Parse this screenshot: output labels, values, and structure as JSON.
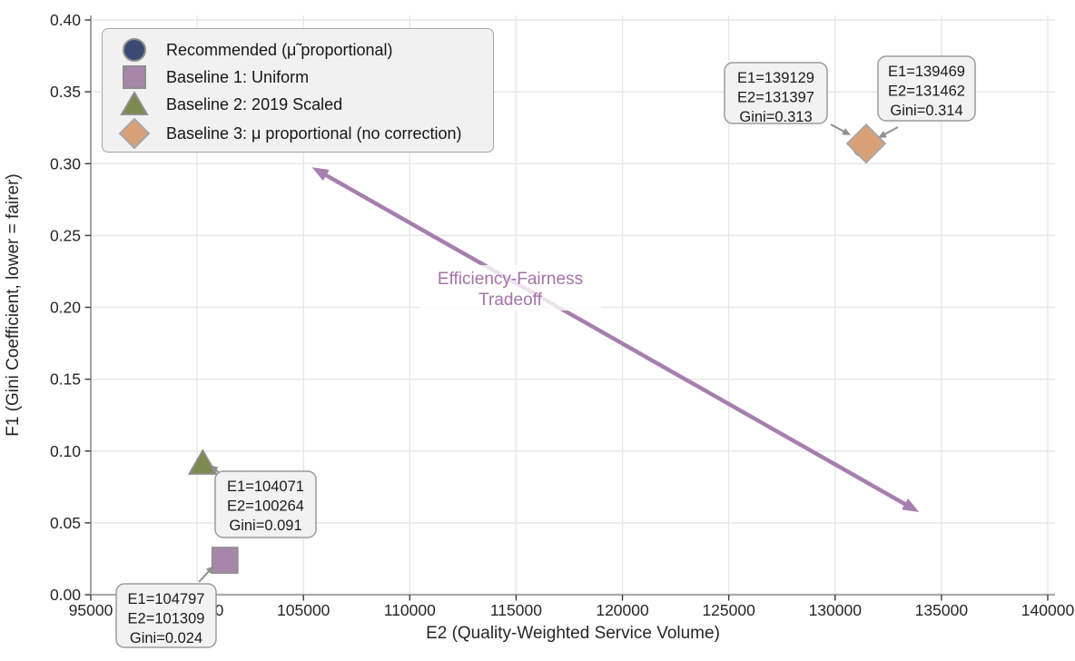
{
  "chart_data": {
    "type": "scatter",
    "title": "",
    "xlabel": "E2 (Quality-Weighted Service Volume)",
    "ylabel": "F1 (Gini Coefficient, lower = fairer)",
    "xlim": [
      95000,
      140000
    ],
    "ylim": [
      0.0,
      0.4
    ],
    "grid": true,
    "legend_position": "upper left",
    "x_tick_labels": [
      "95000",
      "100000",
      "105000",
      "110000",
      "115000",
      "120000",
      "125000",
      "130000",
      "135000",
      "140000"
    ],
    "y_tick_labels": [
      "0.00",
      "0.05",
      "0.10",
      "0.15",
      "0.20",
      "0.25",
      "0.30",
      "0.35",
      "0.40"
    ],
    "series": [
      {
        "name": "Recommended (μ̃ proportional)",
        "marker": "circle",
        "color": "#3a4a74",
        "edge_color": "#8f8f8f",
        "points": [
          {
            "x": 131397,
            "y": 0.313
          }
        ]
      },
      {
        "name": "Baseline 1: Uniform",
        "marker": "square",
        "color": "#a686a9",
        "edge_color": "#8f8f8f",
        "points": [
          {
            "x": 101309,
            "y": 0.024
          }
        ]
      },
      {
        "name": "Baseline 2: 2019 Scaled",
        "marker": "triangle",
        "color": "#7e894f",
        "edge_color": "#8f8f8f",
        "points": [
          {
            "x": 100264,
            "y": 0.091
          }
        ]
      },
      {
        "name": "Baseline 3: μ proportional (no correction)",
        "marker": "diamond",
        "color": "#d8a077",
        "edge_color": "#a8a8a8",
        "points": [
          {
            "x": 131462,
            "y": 0.314
          }
        ]
      }
    ],
    "annotations": [
      {
        "target_series": 0,
        "lines": [
          "E1=139129",
          "E2=131397",
          "Gini=0.313"
        ]
      },
      {
        "target_series": 3,
        "lines": [
          "E1=139469",
          "E2=131462",
          "Gini=0.314"
        ]
      },
      {
        "target_series": 2,
        "lines": [
          "E1=104071",
          "E2=100264",
          "Gini=0.091"
        ]
      },
      {
        "target_series": 1,
        "lines": [
          "E1=104797",
          "E2=101309",
          "Gini=0.024"
        ]
      }
    ],
    "tradeoff_annotation": {
      "label_lines": [
        "Efficiency-Fairness",
        "Tradeoff"
      ],
      "arrow_color": "#a67fae",
      "text_color": "#a572a9",
      "from": {
        "x": 105400,
        "y": 0.2975
      },
      "to": {
        "x": 133950,
        "y": 0.0575
      }
    },
    "colors": {
      "background": "#ffffff",
      "grid": "#e7e7e7",
      "spine_left": "#9b9b9b",
      "spine_bottom": "#ababab",
      "tick": "#3a3a3a",
      "text": "#262626",
      "annotation_bg": "#f2f2f2",
      "annotation_border": "#9b9b9b",
      "annotation_text": "#1b1b1b",
      "annotation_arrow": "#8f8f8f",
      "legend_bg": "#f1f1f1",
      "legend_border": "#a6a6a6"
    }
  }
}
